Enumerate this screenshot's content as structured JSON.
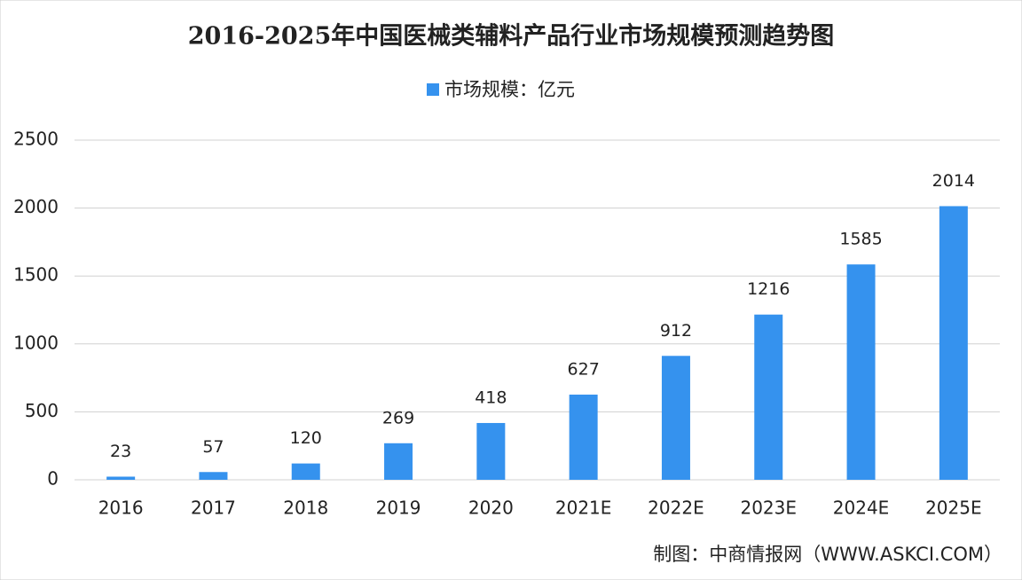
{
  "chart_data": {
    "type": "bar",
    "title": "2016-2025年中国医械类辅料产品行业市场规模预测趋势图",
    "categories": [
      "2016",
      "2017",
      "2018",
      "2019",
      "2020",
      "2021E",
      "2022E",
      "2023E",
      "2024E",
      "2025E"
    ],
    "series": [
      {
        "name": "市场规模：亿元",
        "color": "#3592ee",
        "values": [
          23,
          57,
          120,
          269,
          418,
          627,
          912,
          1216,
          1585,
          2014
        ]
      }
    ],
    "ylim": [
      0,
      2500
    ],
    "yticks": [
      0,
      500,
      1000,
      1500,
      2000,
      2500
    ],
    "grid": true,
    "legend": "top",
    "source": "制图：中商情报网（WWW.ASKCI.COM）"
  }
}
